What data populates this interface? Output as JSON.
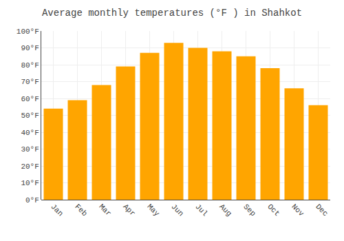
{
  "chart_data": {
    "type": "bar",
    "title": "Average monthly temperatures (°F ) in Shahkot",
    "categories": [
      "Jan",
      "Feb",
      "Mar",
      "Apr",
      "May",
      "Jun",
      "Jul",
      "Aug",
      "Sep",
      "Oct",
      "Nov",
      "Dec"
    ],
    "values": [
      54,
      59,
      68,
      79,
      87,
      93,
      90,
      88,
      85,
      78,
      66,
      56
    ],
    "color": "#FFA500",
    "ylim": [
      0,
      100
    ],
    "yticks": [
      {
        "value": 0,
        "label": "0°F"
      },
      {
        "value": 10,
        "label": "10°F"
      },
      {
        "value": 20,
        "label": "20°F"
      },
      {
        "value": 30,
        "label": "30°F"
      },
      {
        "value": 40,
        "label": "40°F"
      },
      {
        "value": 50,
        "label": "50°F"
      },
      {
        "value": 60,
        "label": "60°F"
      },
      {
        "value": 70,
        "label": "70°F"
      },
      {
        "value": 80,
        "label": "80°F"
      },
      {
        "value": 90,
        "label": "90°F"
      },
      {
        "value": 100,
        "label": "100°F"
      }
    ],
    "grid": true
  }
}
